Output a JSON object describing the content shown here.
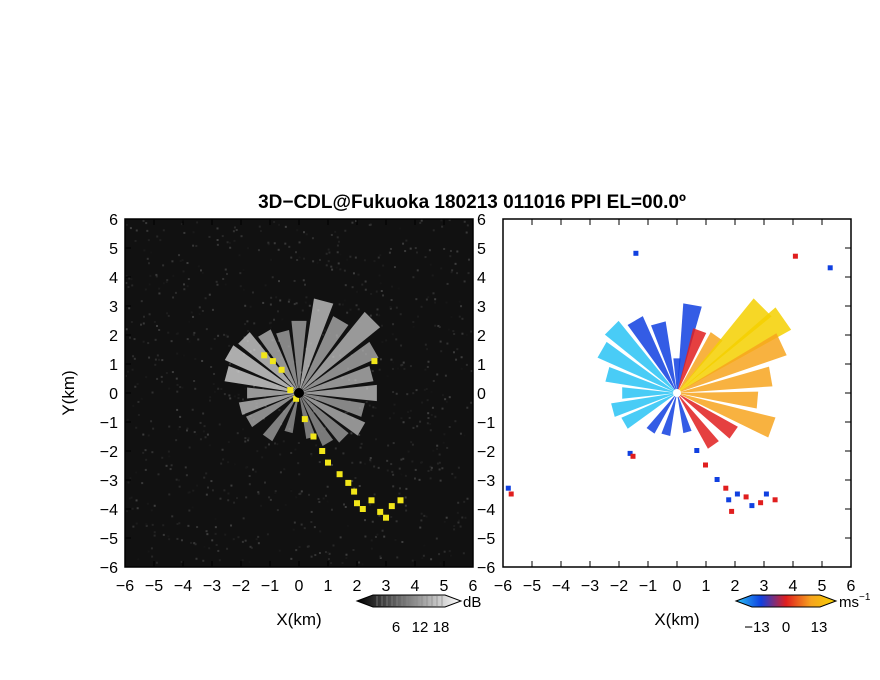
{
  "chart_data": [
    {
      "type": "heatmap",
      "panel": "reflectivity",
      "xlabel": "X(km)",
      "ylabel": "Y(km)",
      "xlim": [
        -6,
        6
      ],
      "ylim": [
        -6,
        6
      ],
      "xticks": [
        "-6",
        "-5",
        "-4",
        "-3",
        "-2",
        "-1",
        "0",
        "1",
        "2",
        "3",
        "4",
        "5",
        "6"
      ],
      "yticks": [
        "6",
        "5",
        "4",
        "3",
        "2",
        "1",
        "0",
        "-1",
        "-2",
        "-3",
        "-4",
        "-5",
        "-6"
      ],
      "colorbar": {
        "unit": "dB",
        "ticks": [
          "6",
          "12",
          "18"
        ],
        "colors": [
          "#000000",
          "#ffffff"
        ]
      },
      "background": "#111111",
      "flag_color": "#f2e619",
      "rays": [
        {
          "az": 0,
          "len": 2.5,
          "tone": 0.55
        },
        {
          "az": 15,
          "len": 3.3,
          "tone": 0.75
        },
        {
          "az": 30,
          "len": 2.9,
          "tone": 0.6
        },
        {
          "az": 45,
          "len": 3.6,
          "tone": 0.7
        },
        {
          "az": 60,
          "len": 3.0,
          "tone": 0.6
        },
        {
          "az": 75,
          "len": 2.6,
          "tone": 0.65
        },
        {
          "az": 90,
          "len": 2.7,
          "tone": 0.7
        },
        {
          "az": 105,
          "len": 2.3,
          "tone": 0.55
        },
        {
          "az": 120,
          "len": 2.5,
          "tone": 0.65
        },
        {
          "az": 135,
          "len": 2.2,
          "tone": 0.5
        },
        {
          "az": 150,
          "len": 2.0,
          "tone": 0.45
        },
        {
          "az": 165,
          "len": 1.6,
          "tone": 0.45
        },
        {
          "az": 195,
          "len": 1.4,
          "tone": 0.45
        },
        {
          "az": 215,
          "len": 1.9,
          "tone": 0.5
        },
        {
          "az": 240,
          "len": 2.0,
          "tone": 0.6
        },
        {
          "az": 255,
          "len": 2.1,
          "tone": 0.7
        },
        {
          "az": 270,
          "len": 1.8,
          "tone": 0.7
        },
        {
          "az": 285,
          "len": 2.6,
          "tone": 0.85
        },
        {
          "az": 300,
          "len": 2.8,
          "tone": 0.85
        },
        {
          "az": 315,
          "len": 2.7,
          "tone": 0.8
        },
        {
          "az": 330,
          "len": 2.4,
          "tone": 0.65
        },
        {
          "az": 345,
          "len": 2.2,
          "tone": 0.55
        }
      ],
      "flag_points": [
        [
          -1.2,
          1.3
        ],
        [
          -0.9,
          1.1
        ],
        [
          -0.6,
          0.8
        ],
        [
          -0.3,
          0.1
        ],
        [
          -0.1,
          -0.2
        ],
        [
          0.2,
          -0.9
        ],
        [
          0.5,
          -1.5
        ],
        [
          0.8,
          -2.0
        ],
        [
          1.0,
          -2.4
        ],
        [
          1.4,
          -2.8
        ],
        [
          1.7,
          -3.1
        ],
        [
          1.9,
          -3.4
        ],
        [
          2.0,
          -3.8
        ],
        [
          2.2,
          -4.0
        ],
        [
          2.5,
          -3.7
        ],
        [
          2.8,
          -4.1
        ],
        [
          3.0,
          -4.3
        ],
        [
          3.2,
          -3.9
        ],
        [
          3.5,
          -3.7
        ],
        [
          2.6,
          1.1
        ]
      ]
    },
    {
      "type": "heatmap",
      "panel": "doppler_velocity",
      "xlabel": "X(km)",
      "xlim": [
        -6,
        6
      ],
      "ylim": [
        -6,
        6
      ],
      "xticks": [
        "-6",
        "-5",
        "-4",
        "-3",
        "-2",
        "-1",
        "0",
        "1",
        "2",
        "3",
        "4",
        "5",
        "6"
      ],
      "colorbar": {
        "unit": "ms",
        "unit_exp": "−1",
        "ticks": [
          "−13",
          "0",
          "13"
        ],
        "colors": [
          "#29c3f5",
          "#1040e0",
          "#e01e1e",
          "#f7a41e",
          "#f5d000"
        ]
      },
      "rays": [
        {
          "az": 0,
          "len": 1.2,
          "v": -2
        },
        {
          "az": 10,
          "len": 3.1,
          "v": -3
        },
        {
          "az": 20,
          "len": 2.3,
          "v": 4
        },
        {
          "az": 35,
          "len": 2.4,
          "v": 6
        },
        {
          "az": 45,
          "len": 4.2,
          "v": 9
        },
        {
          "az": 55,
          "len": 4.5,
          "v": 10
        },
        {
          "az": 65,
          "len": 4.0,
          "v": 8
        },
        {
          "az": 80,
          "len": 3.3,
          "v": 7
        },
        {
          "az": 95,
          "len": 2.8,
          "v": 6
        },
        {
          "az": 110,
          "len": 3.5,
          "v": 8
        },
        {
          "az": 125,
          "len": 2.4,
          "v": 3
        },
        {
          "az": 145,
          "len": 2.2,
          "v": 2
        },
        {
          "az": 165,
          "len": 1.4,
          "v": -1
        },
        {
          "az": 195,
          "len": 1.5,
          "v": -5
        },
        {
          "az": 215,
          "len": 1.6,
          "v": -7
        },
        {
          "az": 240,
          "len": 2.1,
          "v": -10
        },
        {
          "az": 255,
          "len": 2.3,
          "v": -11
        },
        {
          "az": 270,
          "len": 1.9,
          "v": -12
        },
        {
          "az": 285,
          "len": 2.5,
          "v": -13
        },
        {
          "az": 300,
          "len": 3.0,
          "v": -12
        },
        {
          "az": 315,
          "len": 3.2,
          "v": -11
        },
        {
          "az": 330,
          "len": 2.9,
          "v": -9
        },
        {
          "az": 345,
          "len": 2.5,
          "v": -6
        }
      ],
      "edge_points": [
        [
          0.7,
          -2.0
        ],
        [
          1.0,
          -2.5
        ],
        [
          1.4,
          -3.0
        ],
        [
          1.7,
          -3.3
        ],
        [
          1.8,
          -3.7
        ],
        [
          1.9,
          -4.1
        ],
        [
          2.1,
          -3.5
        ],
        [
          2.4,
          -3.6
        ],
        [
          2.6,
          -3.9
        ],
        [
          2.9,
          -3.8
        ],
        [
          3.1,
          -3.5
        ],
        [
          3.4,
          -3.7
        ],
        [
          -1.6,
          -2.1
        ],
        [
          -1.5,
          -2.2
        ],
        [
          -5.8,
          -3.3
        ],
        [
          -5.7,
          -3.5
        ],
        [
          -1.4,
          4.8
        ],
        [
          4.1,
          4.7
        ],
        [
          5.3,
          4.3
        ]
      ]
    }
  ],
  "figure": {
    "title": "3D−CDL@Fukuoka 180213 011016 PPI EL=00.0º"
  }
}
